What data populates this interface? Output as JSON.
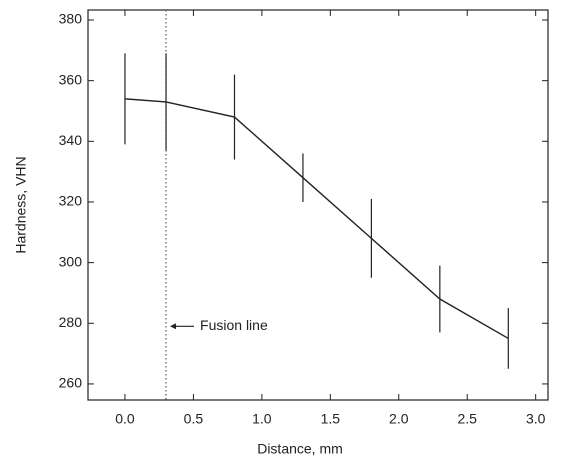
{
  "chart_data": {
    "type": "line",
    "x_label": "Distance, mm",
    "y_label": "Hardness, VHN",
    "x": [
      0.0,
      0.3,
      0.8,
      1.3,
      1.8,
      2.3,
      2.8
    ],
    "series": [
      {
        "color": "#222222",
        "values": [
          354,
          353,
          348,
          328,
          308,
          288,
          275
        ],
        "errors": [
          15,
          16,
          14,
          8,
          13,
          11,
          10
        ]
      }
    ],
    "xlim": [
      -0.27,
      3.09
    ],
    "xticks": [
      {
        "value": 0,
        "label": "0.0"
      },
      0.5,
      {
        "value": 1,
        "label": "1.0"
      },
      1.5,
      {
        "value": 2,
        "label": "2.0"
      },
      2.5,
      {
        "value": 3,
        "label": "3.0"
      }
    ],
    "ylim": [
      254.7,
      383.3
    ],
    "yticks": [
      260,
      280,
      300,
      320,
      340,
      360,
      380
    ],
    "fusion_line_x": 0.3,
    "annotation": "Fusion line",
    "annotation_y": 279
  }
}
